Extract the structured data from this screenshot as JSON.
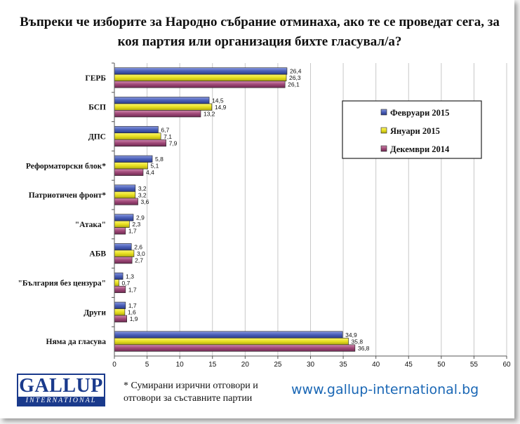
{
  "title": "Въпреки че изборите за Народно събрание отминаха, ако те се проведат сега, за коя партия или организация бихте гласувал/а?",
  "footnote": "* Сумирани изрични отговори и отговори за съставните партии",
  "website": "www.gallup-international.bg",
  "logo": {
    "main": "GALLUP",
    "sub": "INTERNATIONAL"
  },
  "colors": {
    "feb": "#4a5fb8",
    "jan": "#e8e020",
    "dec": "#a04878"
  },
  "chart_data": {
    "type": "bar",
    "orientation": "horizontal",
    "categories": [
      "ГЕРБ",
      "БСП",
      "ДПС",
      "Реформаторски блок*",
      "Патриотичен фронт*",
      "\"Атака\"",
      "АБВ",
      "\"България без цензура\"",
      "Други",
      "Няма да гласува"
    ],
    "series": [
      {
        "name": "Февруари 2015",
        "values": [
          26.4,
          14.5,
          6.7,
          5.8,
          3.2,
          2.9,
          2.6,
          1.3,
          1.7,
          34.9
        ]
      },
      {
        "name": "Януари 2015",
        "values": [
          26.3,
          14.9,
          7.1,
          5.1,
          3.2,
          2.3,
          3.0,
          0.7,
          1.6,
          35.8
        ]
      },
      {
        "name": "Декември 2014",
        "values": [
          26.1,
          13.2,
          7.9,
          4.4,
          3.6,
          1.7,
          2.7,
          1.7,
          1.9,
          36.8
        ]
      }
    ],
    "value_labels": [
      [
        "26,4",
        "14,5",
        "6,7",
        "5,8",
        "3,2",
        "2,9",
        "2,6",
        "1,3",
        "1,7",
        "34,9"
      ],
      [
        "26,3",
        "14,9",
        "7,1",
        "5,1",
        "3,2",
        "2,3",
        "3,0",
        "0,7",
        "1,6",
        "35,8"
      ],
      [
        "26,1",
        "13,2",
        "7,9",
        "4,4",
        "3,6",
        "1,7",
        "2,7",
        "1,7",
        "1,9",
        "36,8"
      ]
    ],
    "x_ticks": [
      0,
      5,
      10,
      15,
      20,
      25,
      30,
      35,
      40,
      45,
      50,
      55,
      60
    ],
    "xlim": [
      0,
      60
    ],
    "grid": true,
    "legend_position": "top-right"
  }
}
